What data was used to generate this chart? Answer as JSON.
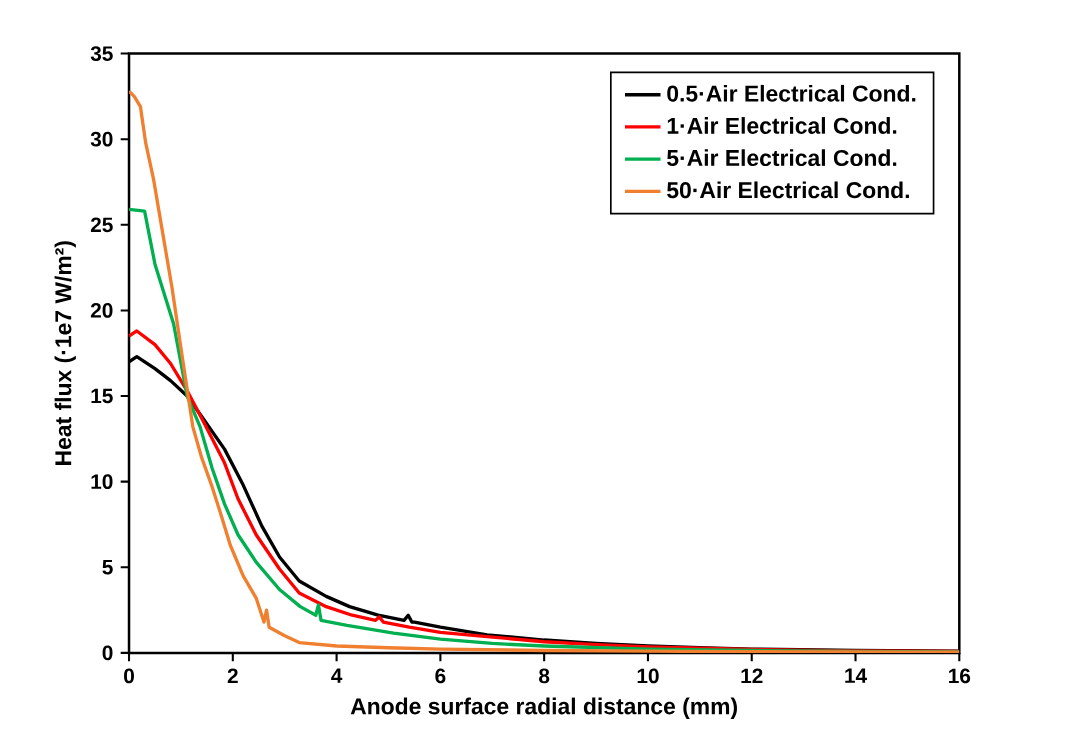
{
  "chart_data": {
    "type": "line",
    "xlabel": "Anode surface radial distance (mm)",
    "ylabel": "Heat flux (·1e7 W/m²)",
    "xlim": [
      0,
      16
    ],
    "ylim": [
      0,
      35
    ],
    "xticks": [
      0,
      2,
      4,
      6,
      8,
      10,
      12,
      14,
      16
    ],
    "yticks": [
      0,
      5,
      10,
      15,
      20,
      25,
      30,
      35
    ],
    "grid": false,
    "legend": "top right",
    "marker": "none",
    "line_style": "solid",
    "series": [
      {
        "name": "0.5·Air Electrical Cond.",
        "color": "#000000",
        "x": [
          0,
          0.15,
          0.5,
          0.8,
          1.12,
          1.4,
          1.84,
          2.2,
          2.56,
          2.9,
          3.28,
          3.8,
          4.25,
          4.8,
          5.3,
          5.38,
          5.45,
          5.5,
          6.0,
          6.9,
          8,
          9,
          10,
          11,
          12,
          14,
          16
        ],
        "values": [
          17.0,
          17.3,
          16.6,
          15.9,
          15.0,
          13.8,
          11.9,
          9.8,
          7.4,
          5.6,
          4.2,
          3.3,
          2.7,
          2.2,
          1.9,
          2.2,
          1.8,
          1.8,
          1.5,
          1.05,
          0.75,
          0.55,
          0.4,
          0.3,
          0.22,
          0.14,
          0.1
        ]
      },
      {
        "name": "1·Air Electrical Cond.",
        "color": "#ff0000",
        "x": [
          0,
          0.15,
          0.5,
          0.8,
          1.12,
          1.4,
          1.84,
          2.1,
          2.45,
          2.9,
          3.28,
          3.8,
          4.3,
          4.75,
          4.82,
          4.9,
          5.4,
          6.0,
          6.9,
          8,
          9,
          10,
          11,
          12,
          14,
          16
        ],
        "values": [
          18.5,
          18.8,
          18.0,
          16.9,
          15.3,
          13.7,
          11.1,
          9.0,
          6.9,
          4.9,
          3.5,
          2.7,
          2.2,
          1.9,
          2.1,
          1.8,
          1.5,
          1.2,
          0.95,
          0.65,
          0.48,
          0.35,
          0.27,
          0.2,
          0.12,
          0.08
        ]
      },
      {
        "name": "5·Air Electrical Cond.",
        "color": "#00b050",
        "x": [
          0,
          0.3,
          0.5,
          0.86,
          1.12,
          1.37,
          1.6,
          1.84,
          2.1,
          2.45,
          2.9,
          3.3,
          3.6,
          3.65,
          3.7,
          4.2,
          5.1,
          6,
          7,
          8,
          10,
          12,
          14,
          16
        ],
        "values": [
          25.9,
          25.8,
          22.7,
          19.2,
          15.0,
          13.2,
          10.8,
          8.7,
          6.9,
          5.3,
          3.7,
          2.7,
          2.2,
          2.8,
          1.9,
          1.6,
          1.15,
          0.8,
          0.55,
          0.4,
          0.22,
          0.14,
          0.09,
          0.06
        ]
      },
      {
        "name": "50·Air Electrical Cond.",
        "color": "#f08030",
        "x": [
          0,
          0.1,
          0.22,
          0.32,
          0.47,
          0.65,
          0.83,
          1.0,
          1.12,
          1.23,
          1.4,
          1.59,
          1.78,
          1.95,
          2.2,
          2.45,
          2.6,
          2.65,
          2.7,
          3.0,
          3.28,
          4,
          5,
          6,
          8,
          10,
          12,
          14,
          16
        ],
        "values": [
          32.8,
          32.5,
          31.9,
          29.8,
          27.7,
          24.5,
          21.3,
          17.8,
          15.4,
          13.2,
          11.4,
          9.8,
          8.0,
          6.3,
          4.5,
          3.2,
          1.8,
          2.5,
          1.5,
          1.0,
          0.6,
          0.4,
          0.3,
          0.22,
          0.14,
          0.1,
          0.07,
          0.05,
          0.04
        ]
      }
    ]
  }
}
